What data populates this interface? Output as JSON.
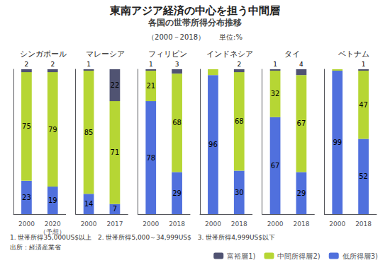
{
  "title": "東南アジア経済の中心を担う中間層",
  "subtitle": "各国の世帯所得分布推移",
  "annotations": [
    "（2000－2018）　　単位:%",
    "1. 世帯所得35,000US$以上　2. 世帯所得5,000～34,999US$　3. 世帯所得4,999US$以下",
    "出所：経済産業省"
  ],
  "legend": "bottom right",
  "chart_data": [
    {
      "type": "bar",
      "title": "シンガポール",
      "categories": [
        "2000",
        "2020\n（予想）"
      ],
      "stacked": true,
      "data_labels": true,
      "grid": false,
      "tick_labels": "x",
      "ylim": [
        0,
        100
      ],
      "series": [
        {
          "name": "富裕層1)",
          "values": [
            2,
            2
          ],
          "value_labels": [
            "2",
            "2"
          ]
        },
        {
          "name": "中間所得層2)",
          "values": [
            75,
            79
          ],
          "value_labels": [
            "75",
            "79"
          ]
        },
        {
          "name": "低所得層3)",
          "values": [
            23,
            19
          ],
          "value_labels": [
            "23",
            "19"
          ]
        }
      ]
    },
    {
      "type": "bar",
      "title": "マレーシア",
      "categories": [
        "2000",
        "2017"
      ],
      "stacked": true,
      "data_labels": true,
      "grid": false,
      "tick_labels": "x",
      "ylim": [
        0,
        100
      ],
      "series": [
        {
          "name": "富裕層1)",
          "values": [
            1,
            22
          ],
          "value_labels": [
            "1",
            "22"
          ]
        },
        {
          "name": "中間所得層2)",
          "values": [
            85,
            71
          ],
          "value_labels": [
            "85",
            "71"
          ]
        },
        {
          "name": "低所得層3)",
          "values": [
            14,
            7
          ],
          "value_labels": [
            "14",
            "7"
          ]
        }
      ]
    },
    {
      "type": "bar",
      "title": "フィリピン",
      "categories": [
        "2000",
        "2018"
      ],
      "stacked": true,
      "data_labels": true,
      "grid": false,
      "tick_labels": "x",
      "ylim": [
        0,
        100
      ],
      "series": [
        {
          "name": "富裕層1)",
          "values": [
            1,
            3
          ],
          "value_labels": [
            "1",
            "3"
          ]
        },
        {
          "name": "中間所得層2)",
          "values": [
            21,
            68
          ],
          "value_labels": [
            "21",
            "68"
          ]
        },
        {
          "name": "低所得層3)",
          "values": [
            78,
            29
          ],
          "value_labels": [
            "78",
            "29"
          ]
        }
      ]
    },
    {
      "type": "bar",
      "title": "インドネシア",
      "categories": [
        "2000",
        "2018"
      ],
      "stacked": true,
      "data_labels": true,
      "grid": false,
      "tick_labels": "x",
      "ylim": [
        0,
        100
      ],
      "series": [
        {
          "name": "富裕層1)",
          "values": [
            0,
            2
          ],
          "value_labels": [
            null,
            "2"
          ]
        },
        {
          "name": "中間所得層2)",
          "values": [
            4,
            68
          ],
          "value_labels": [
            null,
            "68"
          ]
        },
        {
          "name": "低所得層3)",
          "values": [
            96,
            30
          ],
          "value_labels": [
            "96",
            "30"
          ]
        }
      ]
    },
    {
      "type": "bar",
      "title": "タイ",
      "categories": [
        "2000",
        "2018"
      ],
      "stacked": true,
      "data_labels": true,
      "grid": false,
      "tick_labels": "x",
      "ylim": [
        0,
        100
      ],
      "series": [
        {
          "name": "富裕層1)",
          "values": [
            1,
            4
          ],
          "value_labels": [
            "1",
            "4"
          ]
        },
        {
          "name": "中間所得層2)",
          "values": [
            32,
            67
          ],
          "value_labels": [
            "32",
            "67"
          ]
        },
        {
          "name": "低所得層3)",
          "values": [
            67,
            29
          ],
          "value_labels": [
            "67",
            "29"
          ]
        }
      ]
    },
    {
      "type": "bar",
      "title": "ベトナム",
      "categories": [
        "2000",
        "2018"
      ],
      "stacked": true,
      "data_labels": true,
      "grid": false,
      "tick_labels": "x",
      "ylim": [
        0,
        100
      ],
      "series": [
        {
          "name": "富裕層1)",
          "values": [
            0,
            1
          ],
          "value_labels": [
            null,
            "1"
          ]
        },
        {
          "name": "中間所得層2)",
          "values": [
            1,
            47
          ],
          "value_labels": [
            null,
            "47"
          ]
        },
        {
          "name": "低所得層3)",
          "values": [
            99,
            52
          ],
          "value_labels": [
            "99",
            "52"
          ]
        }
      ]
    }
  ]
}
